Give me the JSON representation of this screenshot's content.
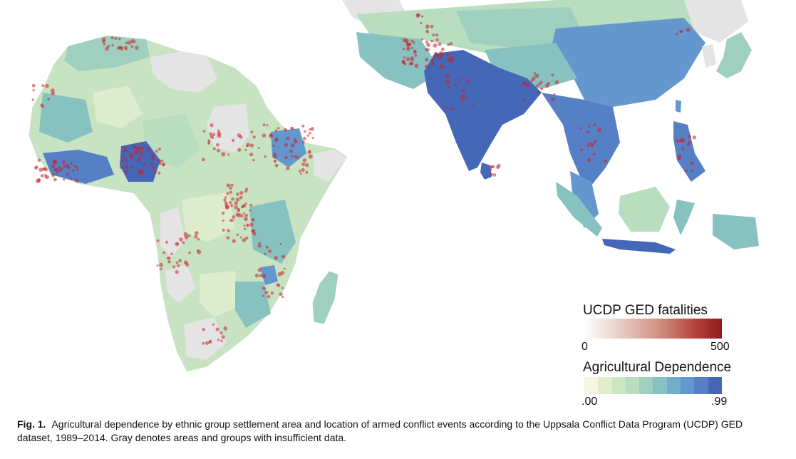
{
  "legend": {
    "fatalities": {
      "title": "UCDP GED fatalities",
      "min": "0",
      "max": "500",
      "color_low": "#ffffff",
      "color_high": "#8e1a1c"
    },
    "agriculture": {
      "title": "Agricultural Dependence",
      "min": ".00",
      "max": ".99",
      "colors": [
        "#f3f7e3",
        "#e0eecf",
        "#cde6c2",
        "#b8ddbf",
        "#9fd0bf",
        "#87c2c1",
        "#73adcc",
        "#6497cd",
        "#5580c6",
        "#4467b8"
      ]
    }
  },
  "caption": {
    "label": "Fig. 1.",
    "text": "Agricultural dependence by ethnic group settlement area and location of armed conflict events according to the Uppsala Conflict Data Program (UCDP) GED dataset, 1989–2014. Gray denotes areas and groups with insufficient data."
  },
  "map": {
    "insufficient_data_color": "#e6e6e6",
    "conflict_color": "#c8202a"
  }
}
